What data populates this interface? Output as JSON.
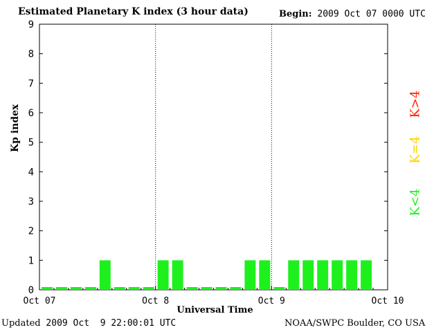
{
  "header": {
    "title": "Estimated Planetary K index (3 hour data)",
    "begin_label": "Begin:",
    "begin_value": "2009 Oct 07 0000 UTC"
  },
  "footer": {
    "updated_label": "Updated",
    "updated_value": "2009 Oct  9 22:00:01 UTC",
    "credit": "NOAA/SWPC Boulder, CO USA"
  },
  "legend": {
    "high": "K>4",
    "mid": "K=4",
    "low": "K<4",
    "colors": {
      "high": "#ff2000",
      "mid": "#ffd000",
      "low": "#1ef01e"
    }
  },
  "chart_data": {
    "type": "bar",
    "ylabel": "Kp index",
    "xlabel": "Universal Time",
    "ylim": [
      0,
      9
    ],
    "yticks": [
      0,
      1,
      2,
      3,
      4,
      5,
      6,
      7,
      8,
      9
    ],
    "xticks": [
      "Oct 07",
      "Oct 8",
      "Oct 9",
      "Oct 10"
    ],
    "day_separators": [
      "Oct 8",
      "Oct 9"
    ],
    "bar_color": "#1ef01e",
    "series": [
      {
        "values": [
          0,
          0,
          0,
          0,
          1,
          0,
          0,
          0,
          1,
          1,
          0,
          0,
          0,
          0,
          1,
          1,
          0,
          1,
          1,
          1,
          1,
          1,
          1
        ]
      }
    ]
  }
}
